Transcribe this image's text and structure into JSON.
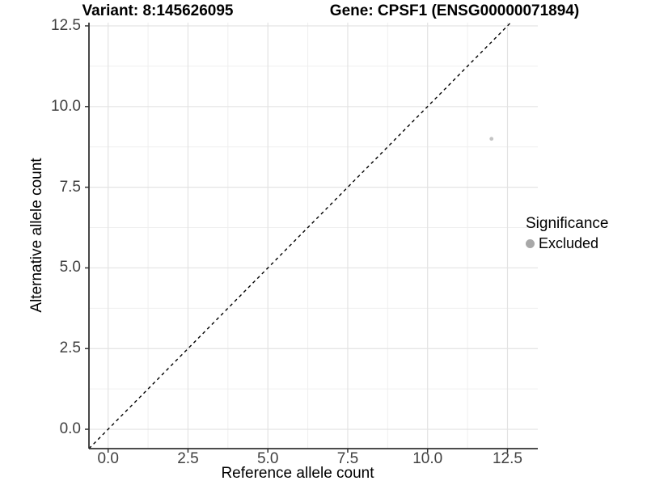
{
  "chart_data": {
    "type": "scatter",
    "title_left": "Variant: 8:145626095",
    "title_right": "Gene: CPSF1 (ENSG00000071894)",
    "xlabel": "Reference allele count",
    "ylabel": "Alternative allele count",
    "x_ticks": [
      0.0,
      2.5,
      5.0,
      7.5,
      10.0,
      12.5
    ],
    "x_tick_labels": [
      "0.0",
      "2.5",
      "5.0",
      "7.5",
      "10.0",
      "12.5"
    ],
    "y_ticks": [
      12.5,
      10.0,
      7.5,
      5.0,
      2.5,
      0.0
    ],
    "y_tick_labels": [
      "12.5",
      "10.0",
      "7.5",
      "5.0",
      "2.5",
      "0.0"
    ],
    "xlim": [
      -0.6,
      13.45
    ],
    "ylim": [
      -0.6,
      12.6
    ],
    "grid": {
      "major": true,
      "minor": true
    },
    "legend_position": "right",
    "legend_title": "Significance",
    "series": [
      {
        "name": "Excluded",
        "point_color": "#c4c4c4",
        "legend_dot_color": "#a8a8a8",
        "points": [
          {
            "x": 12,
            "y": 9
          }
        ]
      }
    ],
    "reference_line": {
      "style": "dashed",
      "slope": 1,
      "intercept": 0,
      "color": "#000000"
    }
  },
  "colors": {
    "axis_line": "#333333",
    "grid_major": "#e3e3e3",
    "grid_minor": "#efefef",
    "tick_text": "#404040",
    "title_text": "#000000"
  }
}
